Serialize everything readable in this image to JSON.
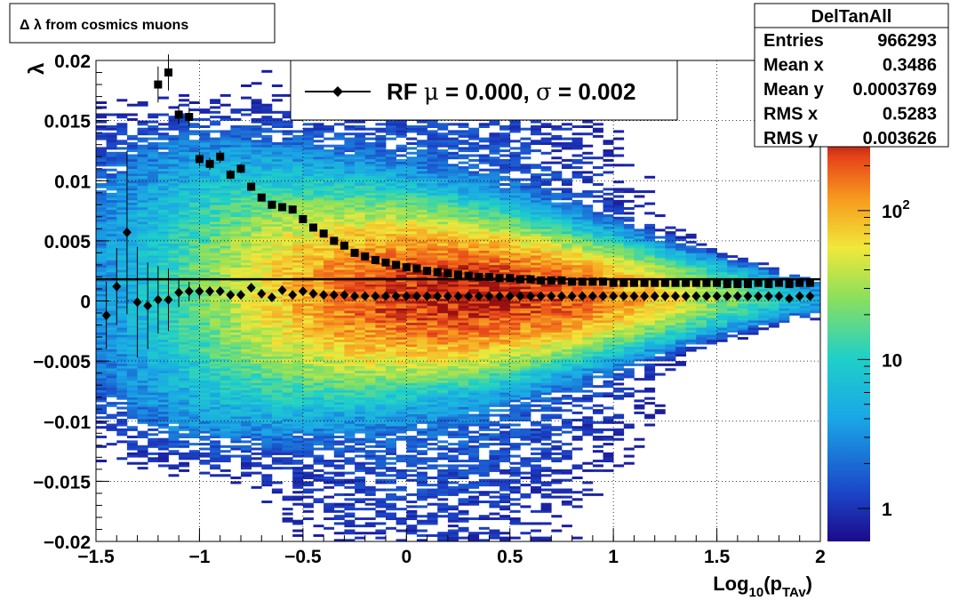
{
  "title": "Δ λ from cosmics muons",
  "stats": {
    "name": "DelTanAll",
    "rows": [
      {
        "label": "Entries",
        "value": "966293"
      },
      {
        "label": "Mean x",
        "value": "0.3486"
      },
      {
        "label": "Mean y",
        "value": "0.0003769"
      },
      {
        "label": "RMS x",
        "value": "0.5283"
      },
      {
        "label": "RMS y",
        "value": "0.003626"
      }
    ]
  },
  "legend": {
    "prefix": "RF ",
    "mu_symbol": "μ",
    "mid": " =  0.000, ",
    "sigma_symbol": "σ",
    "suffix": " =   0.002"
  },
  "colorbar": {
    "scale": "log",
    "ticks": [
      {
        "base": "1",
        "exp": "",
        "value": 1
      },
      {
        "base": "10",
        "exp": "",
        "value": 10
      },
      {
        "base": "10",
        "exp": "2",
        "value": 100
      }
    ],
    "zmin": 0.6,
    "zmax": 330
  },
  "chart_data": {
    "type": "heatmap",
    "xlabel_main": "Log",
    "xlabel_sub": "10",
    "xlabel_mid": "(p",
    "xlabel_sub2": "TAv",
    "xlabel_end": ")",
    "ylabel": "λ",
    "xlim": [
      -1.5,
      2.0
    ],
    "ylim": [
      -0.02,
      0.02
    ],
    "xticks": [
      "−1.5",
      "−1",
      "−0.5",
      "0",
      "0.5",
      "1",
      "1.5",
      "2"
    ],
    "xtick_values": [
      -1.5,
      -1,
      -0.5,
      0,
      0.5,
      1,
      1.5,
      2
    ],
    "yticks": [
      "−0.02",
      "−0.015",
      "−0.01",
      "−0.005",
      "0",
      "0.005",
      "0.01",
      "0.015",
      "0.02"
    ],
    "ytick_values": [
      -0.02,
      -0.015,
      -0.01,
      -0.005,
      0,
      0.005,
      0.01,
      0.015,
      0.02
    ],
    "grid": true,
    "colormap": "rainbow",
    "reference_line_y": 0.0018,
    "series": [
      {
        "marker": "square",
        "x": [
          -1.2,
          -1.15,
          -1.1,
          -1.05,
          -1.0,
          -0.95,
          -0.9,
          -0.85,
          -0.8,
          -0.75,
          -0.7,
          -0.65,
          -0.6,
          -0.55,
          -0.5,
          -0.45,
          -0.4,
          -0.35,
          -0.3,
          -0.25,
          -0.2,
          -0.15,
          -0.1,
          -0.05,
          0.0,
          0.05,
          0.1,
          0.15,
          0.2,
          0.25,
          0.3,
          0.35,
          0.4,
          0.45,
          0.5,
          0.55,
          0.6,
          0.65,
          0.7,
          0.75,
          0.8,
          0.85,
          0.9,
          0.95,
          1.0,
          1.05,
          1.1,
          1.15,
          1.2,
          1.25,
          1.3,
          1.35,
          1.4,
          1.45,
          1.5,
          1.55,
          1.6,
          1.65,
          1.7,
          1.75,
          1.8,
          1.85,
          1.9,
          1.95
        ],
        "y": [
          0.018,
          0.019,
          0.0155,
          0.0153,
          0.0118,
          0.0114,
          0.012,
          0.0105,
          0.011,
          0.0095,
          0.0086,
          0.008,
          0.0078,
          0.0076,
          0.0068,
          0.0061,
          0.0056,
          0.005,
          0.0046,
          0.004,
          0.0037,
          0.0034,
          0.0032,
          0.003,
          0.0028,
          0.0027,
          0.0025,
          0.0024,
          0.0023,
          0.0022,
          0.0021,
          0.002,
          0.002,
          0.0019,
          0.0019,
          0.0018,
          0.0018,
          0.0017,
          0.0017,
          0.0017,
          0.0016,
          0.0016,
          0.0016,
          0.0016,
          0.0015,
          0.0015,
          0.0015,
          0.0015,
          0.0015,
          0.0015,
          0.0015,
          0.0015,
          0.0015,
          0.0015,
          0.0015,
          0.0014,
          0.0014,
          0.0014,
          0.0015,
          0.0014,
          0.0015,
          0.0014,
          0.0015,
          0.0015
        ],
        "yerr": [
          0.0015,
          0.0015,
          0.0008,
          0.0008,
          0.0006,
          0.0005,
          0.0005,
          0.0004,
          0.0004,
          0.0003,
          0.0002,
          0.0002,
          0.0002,
          0.0002,
          0.0001,
          0.0001,
          0.0001,
          0.0001,
          0,
          0,
          0,
          0,
          0,
          0,
          0,
          0,
          0,
          0,
          0,
          0,
          0,
          0,
          0,
          0,
          0,
          0,
          0,
          0,
          0,
          0,
          0,
          0,
          0,
          0,
          0,
          0,
          0,
          0,
          0,
          0,
          0,
          0,
          0,
          0,
          0,
          0,
          0,
          0,
          0,
          0,
          0,
          0,
          0,
          0
        ]
      },
      {
        "marker": "diamond",
        "x": [
          -1.45,
          -1.4,
          -1.35,
          -1.3,
          -1.25,
          -1.2,
          -1.15,
          -1.1,
          -1.05,
          -1.0,
          -0.95,
          -0.9,
          -0.85,
          -0.8,
          -0.75,
          -0.7,
          -0.65,
          -0.6,
          -0.55,
          -0.5,
          -0.45,
          -0.4,
          -0.35,
          -0.3,
          -0.25,
          -0.2,
          -0.15,
          -0.1,
          -0.05,
          0.0,
          0.05,
          0.1,
          0.15,
          0.2,
          0.25,
          0.3,
          0.35,
          0.4,
          0.45,
          0.5,
          0.55,
          0.6,
          0.65,
          0.7,
          0.75,
          0.8,
          0.85,
          0.9,
          0.95,
          1.0,
          1.05,
          1.1,
          1.15,
          1.2,
          1.25,
          1.3,
          1.35,
          1.4,
          1.45,
          1.5,
          1.55,
          1.6,
          1.65,
          1.7,
          1.75,
          1.8,
          1.85,
          1.9,
          1.95
        ],
        "y": [
          -0.0012,
          0.0012,
          0.0057,
          -0.0001,
          -0.0004,
          0.0001,
          0.0001,
          0.0007,
          0.0008,
          0.0008,
          0.0008,
          0.0008,
          0.0005,
          0.0005,
          0.0011,
          0.0006,
          0.0003,
          0.0009,
          0.0005,
          0.0008,
          0.0006,
          0.0005,
          0.0005,
          0.0005,
          0.0004,
          0.0004,
          0.0004,
          0.0004,
          0.0004,
          0.0004,
          0.0004,
          0.0004,
          0.0004,
          0.0004,
          0.0004,
          0.0004,
          0.0004,
          0.0004,
          0.0004,
          0.0004,
          0.0004,
          0.0004,
          0.0004,
          0.0004,
          0.0004,
          0.0004,
          0.0004,
          0.0004,
          0.0004,
          0.0004,
          0.0004,
          0.0004,
          0.0004,
          0.0004,
          0.0004,
          0.0004,
          0.0004,
          0.0004,
          0.0004,
          0.0004,
          0.0004,
          0.0004,
          0.0004,
          0.0004,
          0.0004,
          0.0004,
          0.0002,
          0.0004,
          0.0004
        ],
        "yerr": [
          0.0028,
          0.0032,
          0.0068,
          0.0046,
          0.0036,
          0.0028,
          0.0026,
          0.0012,
          0.0008,
          0.0006,
          0.0004,
          0.0003,
          0.0003,
          0.0002,
          0.0002,
          0.0001,
          0.0001,
          0.0001,
          0,
          0,
          0,
          0,
          0,
          0,
          0,
          0,
          0,
          0,
          0,
          0,
          0,
          0,
          0,
          0,
          0,
          0,
          0,
          0,
          0,
          0,
          0,
          0,
          0,
          0,
          0,
          0,
          0,
          0,
          0,
          0,
          0,
          0,
          0,
          0,
          0,
          0,
          0,
          0,
          0,
          0,
          0,
          0,
          0,
          0,
          0,
          0,
          0,
          0,
          0
        ]
      }
    ]
  }
}
